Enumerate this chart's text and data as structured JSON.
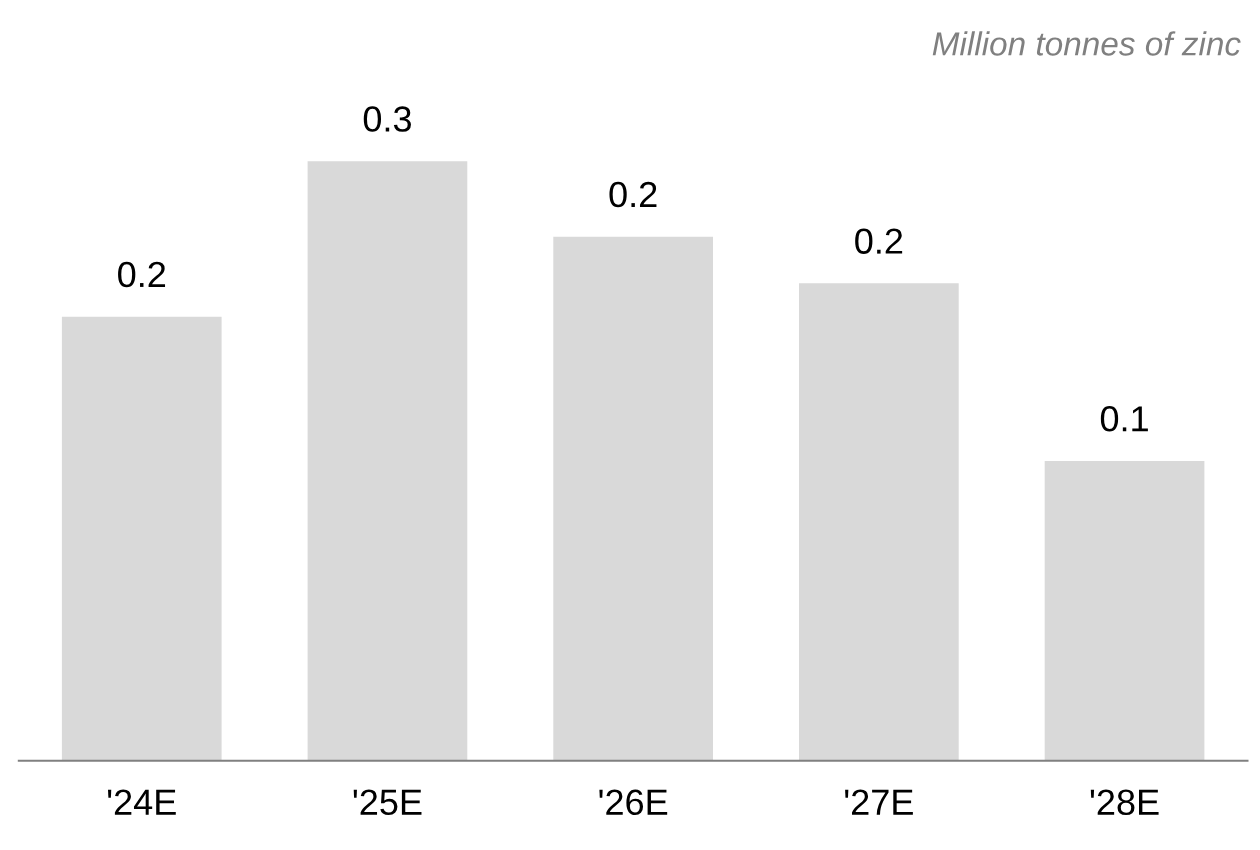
{
  "chart_data": {
    "type": "bar",
    "annotations": [
      "Million tonnes of zinc"
    ],
    "categories": [
      "'24E",
      "'25E",
      "'26E",
      "'27E",
      "'28E"
    ],
    "values": [
      0.2,
      0.27,
      0.236,
      0.215,
      0.135
    ],
    "value_labels": [
      "0.2",
      "0.3",
      "0.2",
      "0.2",
      "0.1"
    ],
    "color": "#d9d9d9",
    "grid": false,
    "legend": false
  }
}
